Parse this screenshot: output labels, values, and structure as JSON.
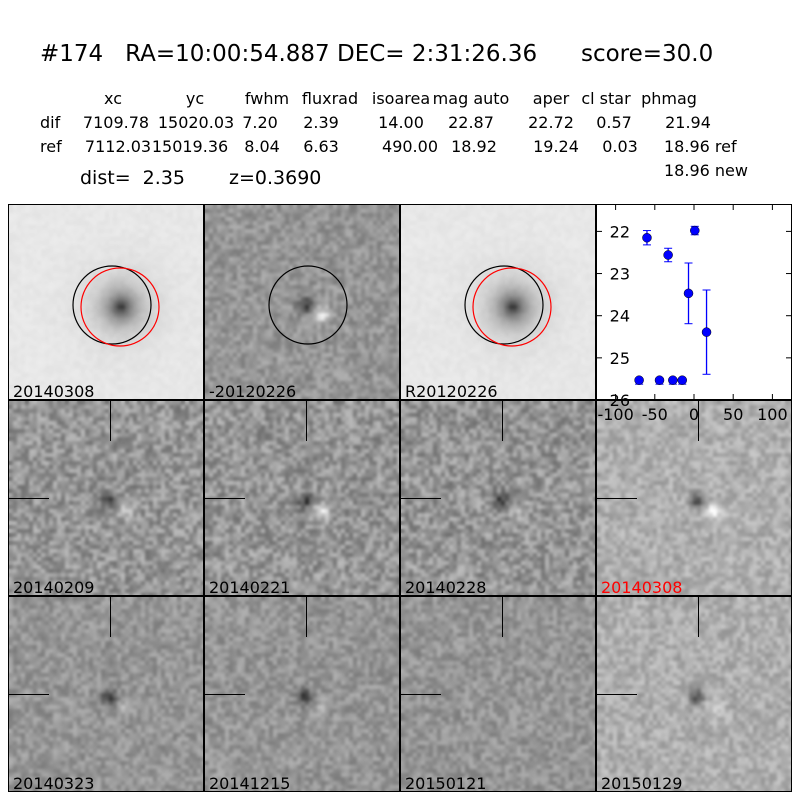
{
  "header": {
    "title": "#174   RA=10:00:54.887 DEC= 2:31:26.36      score=30.0",
    "columns": [
      "xc",
      "yc",
      "fwhm",
      "fluxrad",
      "isoarea",
      "mag auto",
      "aper",
      "cl star",
      "phmag"
    ],
    "dif": {
      "label": "dif",
      "values": [
        "7109.78",
        "15020.03",
        "7.20",
        "2.39",
        "14.00",
        "22.87",
        "22.72",
        "0.57",
        "21.94"
      ]
    },
    "ref": {
      "label": "ref",
      "values": [
        "7112.03",
        "15019.36",
        "8.04",
        "6.63",
        "490.00",
        "18.92",
        "19.24",
        "0.03",
        "18.96 ref"
      ]
    },
    "new_phmag": "18.96 new",
    "dist": "dist=  2.35",
    "z": "z=0.3690"
  },
  "panels": [
    {
      "label": "20140308",
      "type": "new"
    },
    {
      "label": "-20120226",
      "type": "diff"
    },
    {
      "label": "R20120226",
      "type": "ref"
    },
    {
      "label": "20140209"
    },
    {
      "label": "20140221"
    },
    {
      "label": "20140228"
    },
    {
      "label": "20140308",
      "color": "#ff0000"
    },
    {
      "label": "20140323"
    },
    {
      "label": "20141215"
    },
    {
      "label": "20150121"
    },
    {
      "label": "20150129"
    }
  ],
  "chart_data": {
    "type": "scatter",
    "xlim": [
      -125,
      125
    ],
    "ylim": [
      26,
      21.35
    ],
    "y_inverted": true,
    "xticks": [
      -100,
      -50,
      0,
      50,
      100
    ],
    "yticks": [
      22,
      23,
      24,
      25,
      26
    ],
    "color": "#0000ff",
    "points": [
      {
        "x": -60,
        "y": 22.15,
        "err": 0.17
      },
      {
        "x": -33,
        "y": 22.56,
        "err": 0.16
      },
      {
        "x": -7,
        "y": 23.47,
        "err": 0.72
      },
      {
        "x": 1,
        "y": 21.98,
        "err": 0.1
      },
      {
        "x": 16,
        "y": 24.39,
        "err": 1.0
      }
    ],
    "limits": [
      {
        "x": -70,
        "y": 25.53
      },
      {
        "x": -44,
        "y": 25.53
      },
      {
        "x": -27,
        "y": 25.53
      },
      {
        "x": -15,
        "y": 25.53
      }
    ]
  }
}
